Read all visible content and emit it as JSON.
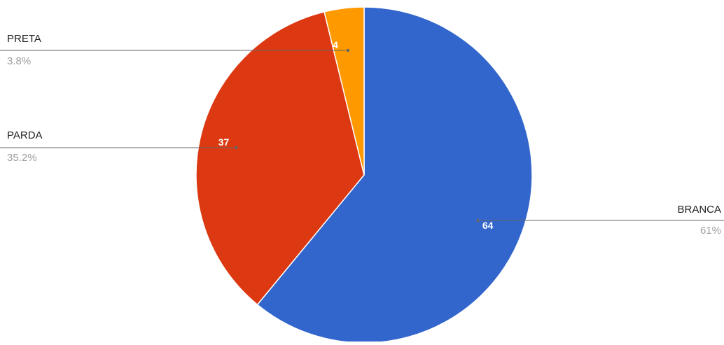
{
  "chart_data": {
    "type": "pie",
    "title": "",
    "start_angle_deg": 0,
    "direction": "clockwise",
    "legend": "callouts",
    "slices": [
      {
        "key": "branca",
        "label": "BRANCA",
        "value": 64,
        "percent_label": "61%",
        "color": "#3366cc"
      },
      {
        "key": "parda",
        "label": "PARDA",
        "value": 37,
        "percent_label": "35.2%",
        "color": "#dc3912"
      },
      {
        "key": "preta",
        "label": "PRETA",
        "value": 4,
        "percent_label": "3.8%",
        "color": "#ff9900"
      }
    ]
  }
}
